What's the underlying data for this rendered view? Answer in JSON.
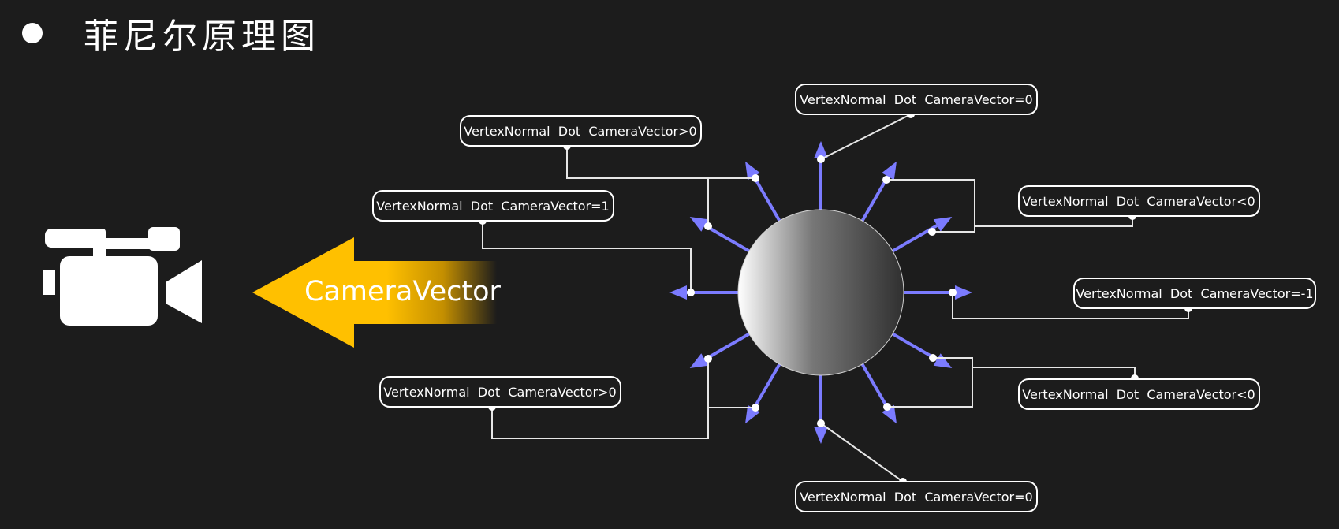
{
  "title": "菲尼尔原理图",
  "arrow_label": "CameraVector",
  "labels": {
    "top": "VertexNormal  Dot  CameraVector=0",
    "upper_left": "VertexNormal  Dot  CameraVector>0",
    "left": "VertexNormal  Dot  CameraVector=1",
    "lower_left": "VertexNormal  Dot  CameraVector>0",
    "upper_right": "VertexNormal  Dot  CameraVector<0",
    "right": "VertexNormal  Dot  CameraVector=-1",
    "lower_right": "VertexNormal  Dot  CameraVector<0",
    "bottom": "VertexNormal  Dot  CameraVector=0"
  },
  "colors": {
    "background": "#1c1c1c",
    "normal_arrow": "#7b7bff",
    "camera_arrow": "#ffc000",
    "text": "#ffffff"
  },
  "icons": [
    "bullet-icon",
    "video-camera-icon"
  ]
}
